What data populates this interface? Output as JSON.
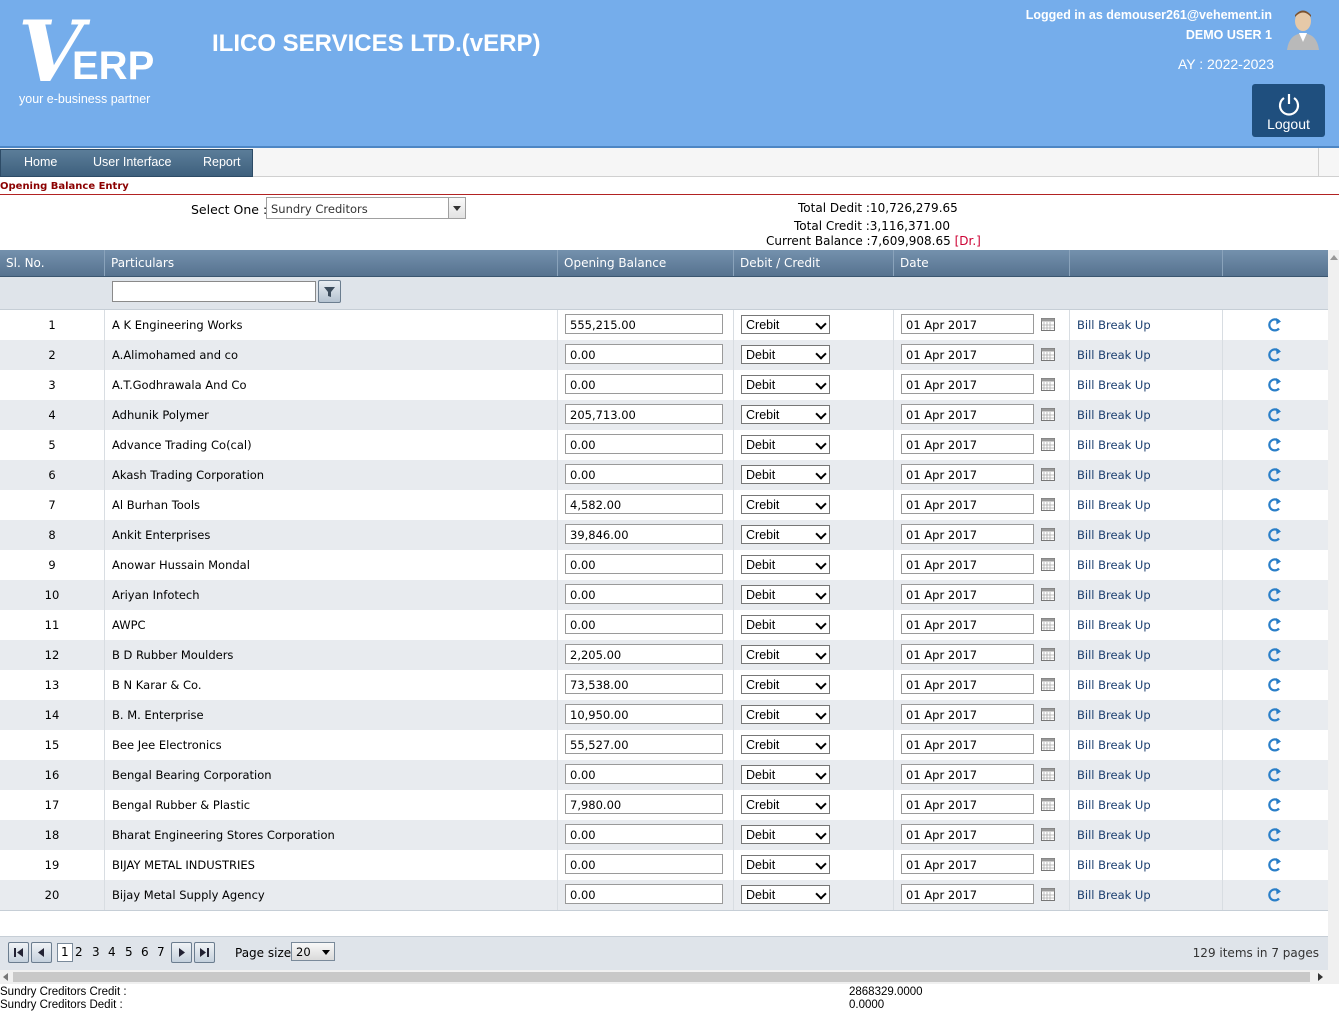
{
  "header": {
    "logo_letter": "V",
    "logo_text": "ERP",
    "logo_tagline": "your e-business partner",
    "company": "ILICO SERVICES LTD.(vERP)",
    "logged_in": "Logged in as demouser261@vehement.in",
    "user": "DEMO USER 1",
    "ay": "AY : 2022-2023",
    "logout": "Logout"
  },
  "menu": {
    "items": [
      "Home",
      "User Interface",
      "Report"
    ]
  },
  "page": {
    "title": "Opening Balance Entry",
    "select_label": "Select One :",
    "select_value": "Sundry Creditors",
    "total_debit_label": "Total Dedit :",
    "total_debit": "10,726,279.65",
    "total_credit_label": "Total Credit :",
    "total_credit": "3,116,371.00",
    "current_balance_label": "Current Balance :",
    "current_balance": "7,609,908.65",
    "balance_type": "[Dr.]"
  },
  "columns": [
    "Sl. No.",
    "Particulars",
    "Opening Balance",
    "Debit / Credit",
    "Date",
    "",
    ""
  ],
  "link_label": "Bill Break Up",
  "rows": [
    {
      "sl": "1",
      "name": "A K Engineering Works",
      "bal": "555,215.00",
      "dc": "Crebit",
      "date": "01 Apr 2017"
    },
    {
      "sl": "2",
      "name": "A.Alimohamed and co",
      "bal": "0.00",
      "dc": "Debit",
      "date": "01 Apr 2017"
    },
    {
      "sl": "3",
      "name": "A.T.Godhrawala And Co",
      "bal": "0.00",
      "dc": "Debit",
      "date": "01 Apr 2017"
    },
    {
      "sl": "4",
      "name": "Adhunik Polymer",
      "bal": "205,713.00",
      "dc": "Crebit",
      "date": "01 Apr 2017"
    },
    {
      "sl": "5",
      "name": "Advance Trading Co(cal)",
      "bal": "0.00",
      "dc": "Debit",
      "date": "01 Apr 2017"
    },
    {
      "sl": "6",
      "name": "Akash Trading Corporation",
      "bal": "0.00",
      "dc": "Debit",
      "date": "01 Apr 2017"
    },
    {
      "sl": "7",
      "name": "Al Burhan Tools",
      "bal": "4,582.00",
      "dc": "Crebit",
      "date": "01 Apr 2017"
    },
    {
      "sl": "8",
      "name": "Ankit Enterprises",
      "bal": "39,846.00",
      "dc": "Crebit",
      "date": "01 Apr 2017"
    },
    {
      "sl": "9",
      "name": "Anowar Hussain Mondal",
      "bal": "0.00",
      "dc": "Debit",
      "date": "01 Apr 2017"
    },
    {
      "sl": "10",
      "name": "Ariyan Infotech",
      "bal": "0.00",
      "dc": "Debit",
      "date": "01 Apr 2017"
    },
    {
      "sl": "11",
      "name": "AWPC",
      "bal": "0.00",
      "dc": "Debit",
      "date": "01 Apr 2017"
    },
    {
      "sl": "12",
      "name": "B D Rubber Moulders",
      "bal": "2,205.00",
      "dc": "Crebit",
      "date": "01 Apr 2017"
    },
    {
      "sl": "13",
      "name": "B N Karar & Co.",
      "bal": "73,538.00",
      "dc": "Crebit",
      "date": "01 Apr 2017"
    },
    {
      "sl": "14",
      "name": "B. M. Enterprise",
      "bal": "10,950.00",
      "dc": "Crebit",
      "date": "01 Apr 2017"
    },
    {
      "sl": "15",
      "name": "Bee Jee Electronics",
      "bal": "55,527.00",
      "dc": "Crebit",
      "date": "01 Apr 2017"
    },
    {
      "sl": "16",
      "name": "Bengal Bearing Corporation",
      "bal": "0.00",
      "dc": "Debit",
      "date": "01 Apr 2017"
    },
    {
      "sl": "17",
      "name": "Bengal Rubber & Plastic",
      "bal": "7,980.00",
      "dc": "Crebit",
      "date": "01 Apr 2017"
    },
    {
      "sl": "18",
      "name": "Bharat Engineering Stores Corporation",
      "bal": "0.00",
      "dc": "Debit",
      "date": "01 Apr 2017"
    },
    {
      "sl": "19",
      "name": "BIJAY METAL INDUSTRIES",
      "bal": "0.00",
      "dc": "Debit",
      "date": "01 Apr 2017"
    },
    {
      "sl": "20",
      "name": "Bijay Metal Supply Agency",
      "bal": "0.00",
      "dc": "Debit",
      "date": "01 Apr 2017"
    }
  ],
  "pager": {
    "pages": [
      "1",
      "2",
      "3",
      "4",
      "5",
      "6",
      "7"
    ],
    "current": "1",
    "page_size_label": "Page size:",
    "page_size": "20",
    "summary": "129 items in 7 pages"
  },
  "footer": {
    "credit_label": "Sundry Creditors Credit :",
    "credit_value": "2868329.0000",
    "debit_label": "Sundry Creditors Dedit :",
    "debit_value": "0.0000"
  }
}
